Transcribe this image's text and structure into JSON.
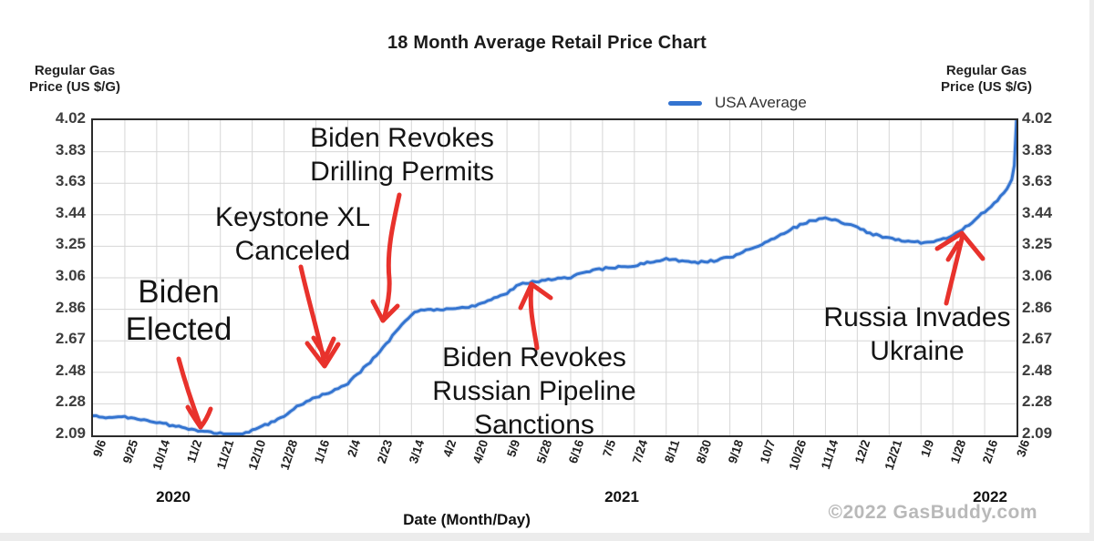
{
  "title": "18 Month Average Retail Price Chart",
  "legend": {
    "label": "USA Average"
  },
  "y_axis": {
    "title_line1": "Regular Gas",
    "title_line2": "Price (US $/G)",
    "ticks": [
      "4.02",
      "3.83",
      "3.63",
      "3.44",
      "3.25",
      "3.06",
      "2.86",
      "2.67",
      "2.48",
      "2.28",
      "2.09"
    ]
  },
  "x_axis": {
    "title": "Date (Month/Day)",
    "ticks": [
      "9/6",
      "9/25",
      "10/14",
      "11/2",
      "11/21",
      "12/10",
      "12/28",
      "1/16",
      "2/4",
      "2/23",
      "3/14",
      "4/2",
      "4/20",
      "5/9",
      "5/28",
      "6/16",
      "7/5",
      "7/24",
      "8/11",
      "8/30",
      "9/18",
      "10/7",
      "10/26",
      "11/14",
      "12/2",
      "12/21",
      "1/9",
      "1/28",
      "2/16",
      "3/6"
    ],
    "years": [
      "2020",
      "2021",
      "2022"
    ]
  },
  "annotations": {
    "biden_elected": {
      "lines": [
        "Biden",
        "Elected"
      ]
    },
    "keystone": {
      "lines": [
        "Keystone XL",
        "Canceled"
      ]
    },
    "drilling": {
      "lines": [
        "Biden Revokes",
        "Drilling Permits"
      ]
    },
    "pipeline": {
      "lines": [
        "Biden Revokes",
        "Russian Pipeline",
        "Sanctions"
      ]
    },
    "ukraine": {
      "lines": [
        "Russia Invades",
        "Ukraine"
      ]
    }
  },
  "footer": {
    "copyright": "©2022 GasBuddy.com"
  },
  "colors": {
    "line": "#3474d0",
    "line_halo": "#9cbbe8",
    "arrow": "#e8322c",
    "grid": "#d6d6d6"
  },
  "chart_data": {
    "type": "line",
    "title": "18 Month Average Retail Price Chart",
    "series_name": "USA Average",
    "xlabel": "Date (Month/Day)",
    "ylabel": "Regular Gas Price (US $/G)",
    "x_tick_labels": [
      "9/6",
      "9/25",
      "10/14",
      "11/2",
      "11/21",
      "12/10",
      "12/28",
      "1/16",
      "2/4",
      "2/23",
      "3/14",
      "4/2",
      "4/20",
      "5/9",
      "5/28",
      "6/16",
      "7/5",
      "7/24",
      "8/11",
      "8/30",
      "9/18",
      "10/7",
      "10/26",
      "11/14",
      "12/2",
      "12/21",
      "1/9",
      "1/28",
      "2/16",
      "3/6"
    ],
    "year_spans": [
      "2020",
      "2021",
      "2022"
    ],
    "y_tick_values": [
      4.02,
      3.83,
      3.63,
      3.44,
      3.25,
      3.06,
      2.86,
      2.67,
      2.48,
      2.28,
      2.09
    ],
    "ylim": [
      2.09,
      4.02
    ],
    "grid": true,
    "legend_position": "top-right",
    "points_note": "x is tick-index (0 = 9/6/2020 ... 29 = 3/6/2022), y is US $/gal",
    "points": [
      [
        0,
        2.21
      ],
      [
        0.5,
        2.2
      ],
      [
        1,
        2.2
      ],
      [
        1.5,
        2.19
      ],
      [
        2,
        2.17
      ],
      [
        2.5,
        2.15
      ],
      [
        3,
        2.13
      ],
      [
        3.5,
        2.11
      ],
      [
        4,
        2.1
      ],
      [
        4.3,
        2.09
      ],
      [
        4.7,
        2.1
      ],
      [
        5,
        2.12
      ],
      [
        5.5,
        2.16
      ],
      [
        6,
        2.21
      ],
      [
        6.5,
        2.28
      ],
      [
        7,
        2.32
      ],
      [
        7.5,
        2.36
      ],
      [
        8,
        2.41
      ],
      [
        8.5,
        2.5
      ],
      [
        9,
        2.6
      ],
      [
        9.5,
        2.72
      ],
      [
        10,
        2.83
      ],
      [
        10.3,
        2.86
      ],
      [
        11,
        2.86
      ],
      [
        11.5,
        2.87
      ],
      [
        12,
        2.88
      ],
      [
        12.5,
        2.92
      ],
      [
        13,
        2.96
      ],
      [
        13.4,
        3.02
      ],
      [
        14,
        3.03
      ],
      [
        14.5,
        3.05
      ],
      [
        15,
        3.06
      ],
      [
        15.5,
        3.09
      ],
      [
        16,
        3.11
      ],
      [
        16.5,
        3.12
      ],
      [
        17,
        3.13
      ],
      [
        17.5,
        3.15
      ],
      [
        18,
        3.17
      ],
      [
        18.5,
        3.16
      ],
      [
        19,
        3.15
      ],
      [
        19.5,
        3.16
      ],
      [
        20,
        3.18
      ],
      [
        20.5,
        3.22
      ],
      [
        21,
        3.26
      ],
      [
        21.5,
        3.31
      ],
      [
        22,
        3.36
      ],
      [
        22.5,
        3.4
      ],
      [
        23,
        3.42
      ],
      [
        23.3,
        3.41
      ],
      [
        24,
        3.36
      ],
      [
        24.5,
        3.32
      ],
      [
        25,
        3.3
      ],
      [
        25.5,
        3.28
      ],
      [
        26,
        3.27
      ],
      [
        26.5,
        3.28
      ],
      [
        27,
        3.31
      ],
      [
        27.5,
        3.38
      ],
      [
        28,
        3.46
      ],
      [
        28.4,
        3.53
      ],
      [
        28.7,
        3.6
      ],
      [
        28.85,
        3.66
      ],
      [
        28.93,
        3.74
      ],
      [
        29,
        4.02
      ]
    ],
    "event_annotations": [
      {
        "label": "Biden Elected",
        "near_date": "11/9/2020"
      },
      {
        "label": "Keystone XL Canceled",
        "near_date": "1/20/2021"
      },
      {
        "label": "Biden Revokes Drilling Permits",
        "near_date": "2/26/2021"
      },
      {
        "label": "Biden Revokes Russian Pipeline Sanctions",
        "near_date": "5/19/2021"
      },
      {
        "label": "Russia Invades Ukraine",
        "near_date": "2/24/2022"
      }
    ]
  }
}
